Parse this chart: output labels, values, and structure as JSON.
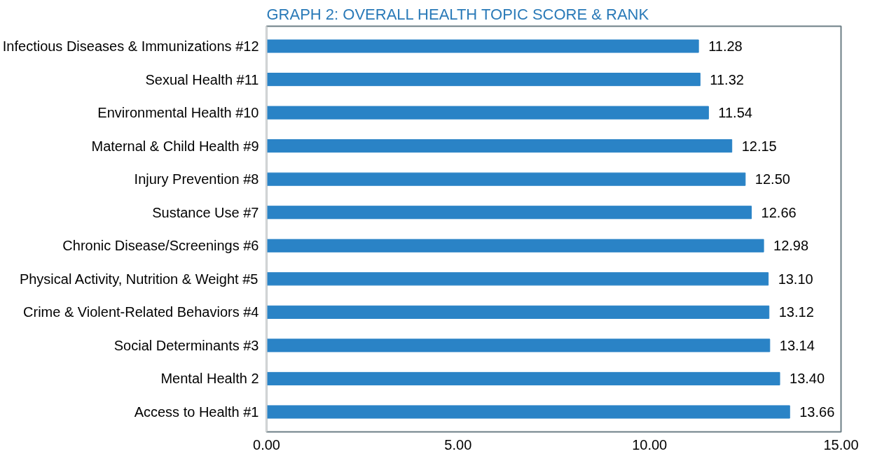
{
  "chart_data": {
    "type": "bar",
    "orientation": "horizontal",
    "title": "GRAPH 2: OVERALL HEALTH TOPIC SCORE & RANK",
    "categories": [
      "Infectious Diseases & Immunizations #12",
      "Sexual Health #11",
      "Environmental Health #10",
      "Maternal & Child Health #9",
      "Injury Prevention #8",
      "Sustance Use #7",
      "Chronic Disease/Screenings #6",
      "Physical Activity, Nutrition & Weight #5",
      "Crime & Violent-Related Behaviors #4",
      "Social Determinants #3",
      "Mental Health 2",
      "Access to Health #1"
    ],
    "values": [
      11.28,
      11.32,
      11.54,
      12.15,
      12.5,
      12.66,
      12.98,
      13.1,
      13.12,
      13.14,
      13.4,
      13.66
    ],
    "value_labels": [
      "11.28",
      "11.32",
      "11.54",
      "12.15",
      "12.50",
      "12.66",
      "12.98",
      "13.10",
      "13.12",
      "13.14",
      "13.40",
      "13.66"
    ],
    "color": "#2a83c6",
    "xlim": [
      0,
      15
    ],
    "xticks": [
      {
        "value": 0,
        "label": "0.00"
      },
      {
        "value": 5,
        "label": "5.00"
      },
      {
        "value": 10,
        "label": "10.00"
      },
      {
        "value": 15,
        "label": "15.00"
      }
    ],
    "grid": false
  }
}
